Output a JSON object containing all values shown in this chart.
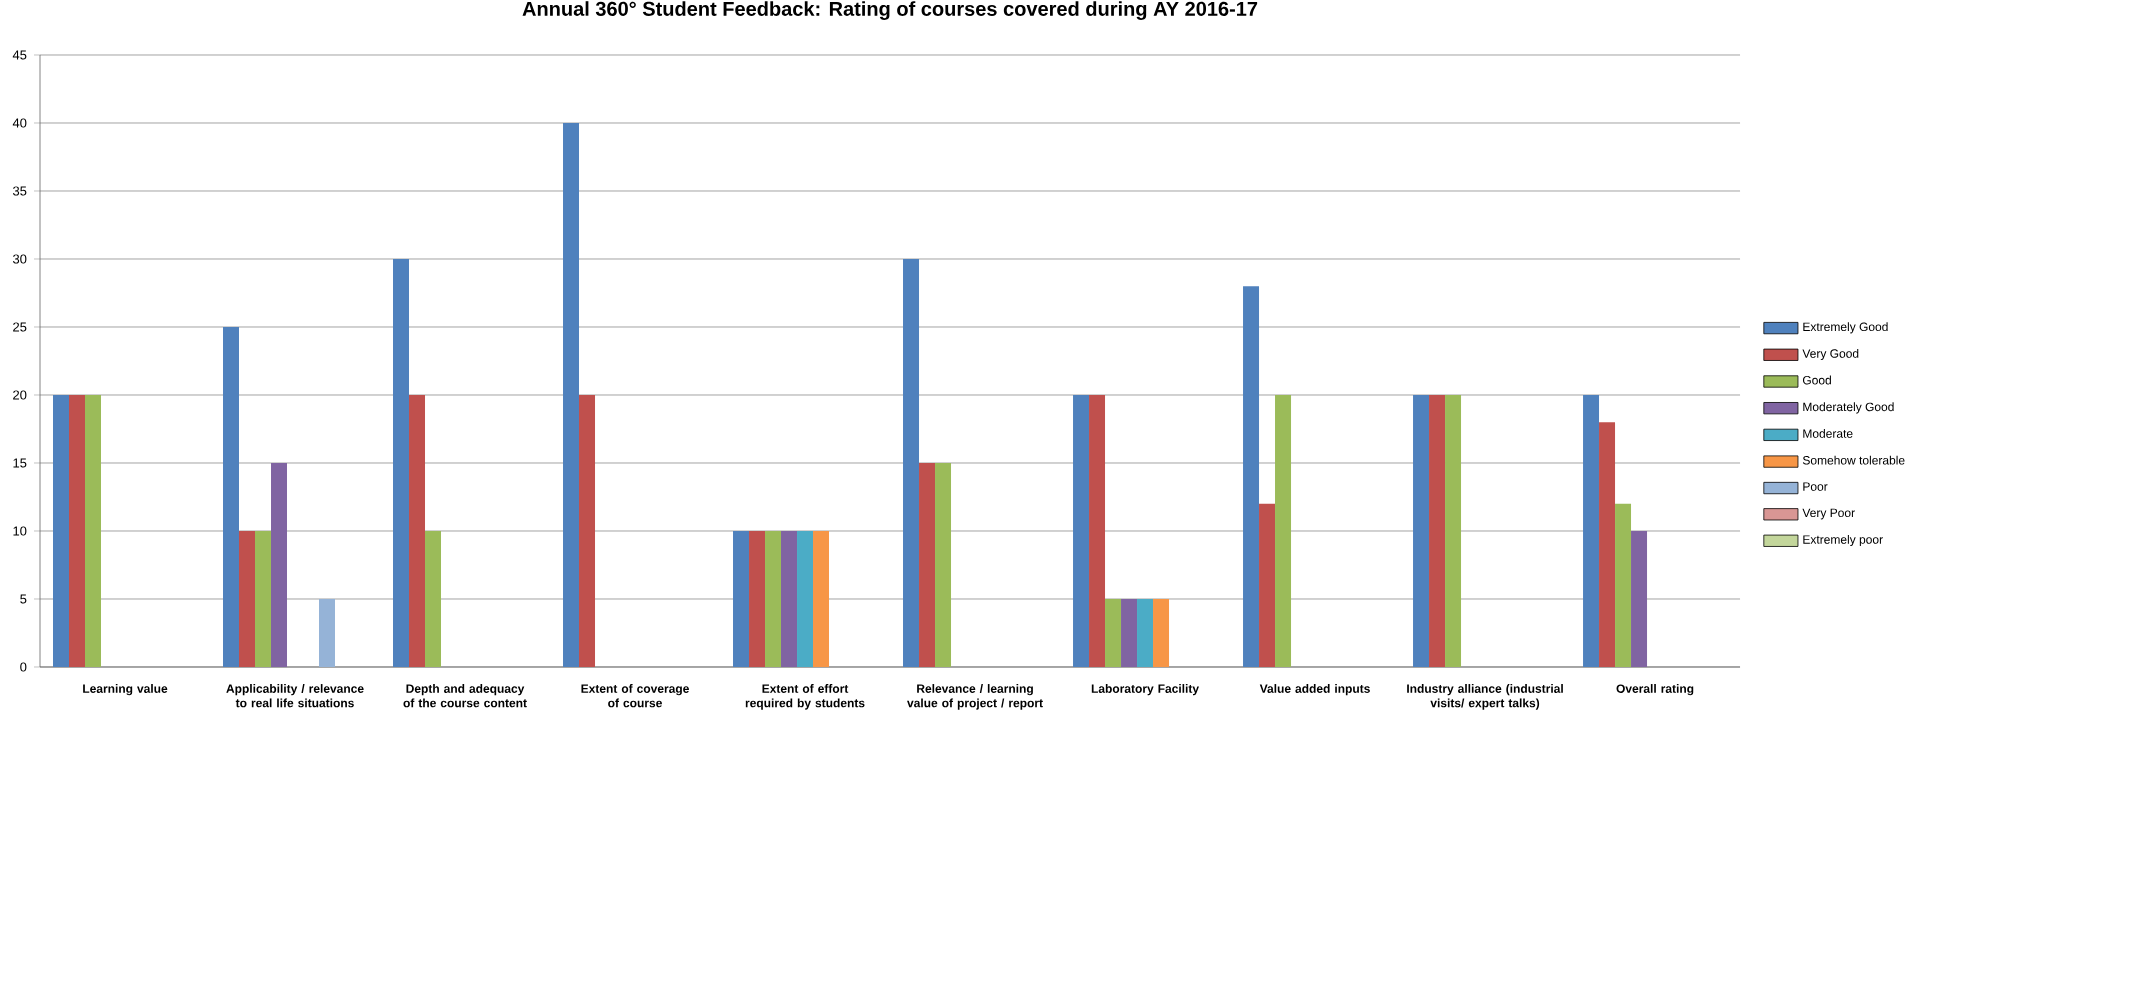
{
  "chart_data": {
    "type": "bar",
    "title": "Annual 360° Student Feedback: Rating of courses covered during  AY 2016-17",
    "categories": [
      "Learning value",
      "Applicability / relevance to real life situations",
      "Depth and adequacy of the course content",
      "Extent of coverage of course",
      "Extent of effort required by students",
      "Relevance / learning value of project / report",
      "Laboratory Facility",
      "Value added inputs",
      "Industry alliance (industrial visits/ expert talks)",
      "Overall rating"
    ],
    "series": [
      {
        "name": "Extremely Good",
        "color": "#4f81bd",
        "values": [
          20,
          25,
          30,
          40,
          10,
          30,
          20,
          28,
          20,
          20
        ]
      },
      {
        "name": "Very Good",
        "color": "#c0504d",
        "values": [
          20,
          10,
          20,
          20,
          10,
          15,
          20,
          12,
          20,
          18
        ]
      },
      {
        "name": "Good",
        "color": "#9bbb59",
        "values": [
          20,
          10,
          10,
          null,
          10,
          15,
          5,
          20,
          20,
          12
        ]
      },
      {
        "name": "Moderately Good",
        "color": "#8064a2",
        "values": [
          null,
          15,
          null,
          null,
          10,
          null,
          5,
          null,
          null,
          10
        ]
      },
      {
        "name": "Moderate",
        "color": "#4bacc6",
        "values": [
          null,
          null,
          null,
          null,
          10,
          null,
          5,
          null,
          null,
          null
        ]
      },
      {
        "name": "Somehow tolerable",
        "color": "#f79646",
        "values": [
          null,
          null,
          null,
          null,
          10,
          null,
          5,
          null,
          null,
          null
        ]
      },
      {
        "name": "Poor",
        "color": "#95b3d7",
        "values": [
          null,
          5,
          null,
          null,
          null,
          null,
          null,
          null,
          null,
          null
        ]
      },
      {
        "name": "Very Poor",
        "color": "#d99694",
        "values": [
          null,
          null,
          null,
          null,
          null,
          null,
          null,
          null,
          null,
          null
        ]
      },
      {
        "name": "Extremely poor",
        "color": "#c3d69b",
        "values": [
          null,
          null,
          null,
          null,
          null,
          null,
          null,
          null,
          null,
          null
        ]
      }
    ],
    "ylim": [
      0,
      45
    ],
    "yticks": [
      0,
      5,
      10,
      15,
      20,
      25,
      30,
      35,
      40,
      45
    ],
    "grid": "y",
    "legend": "right"
  }
}
